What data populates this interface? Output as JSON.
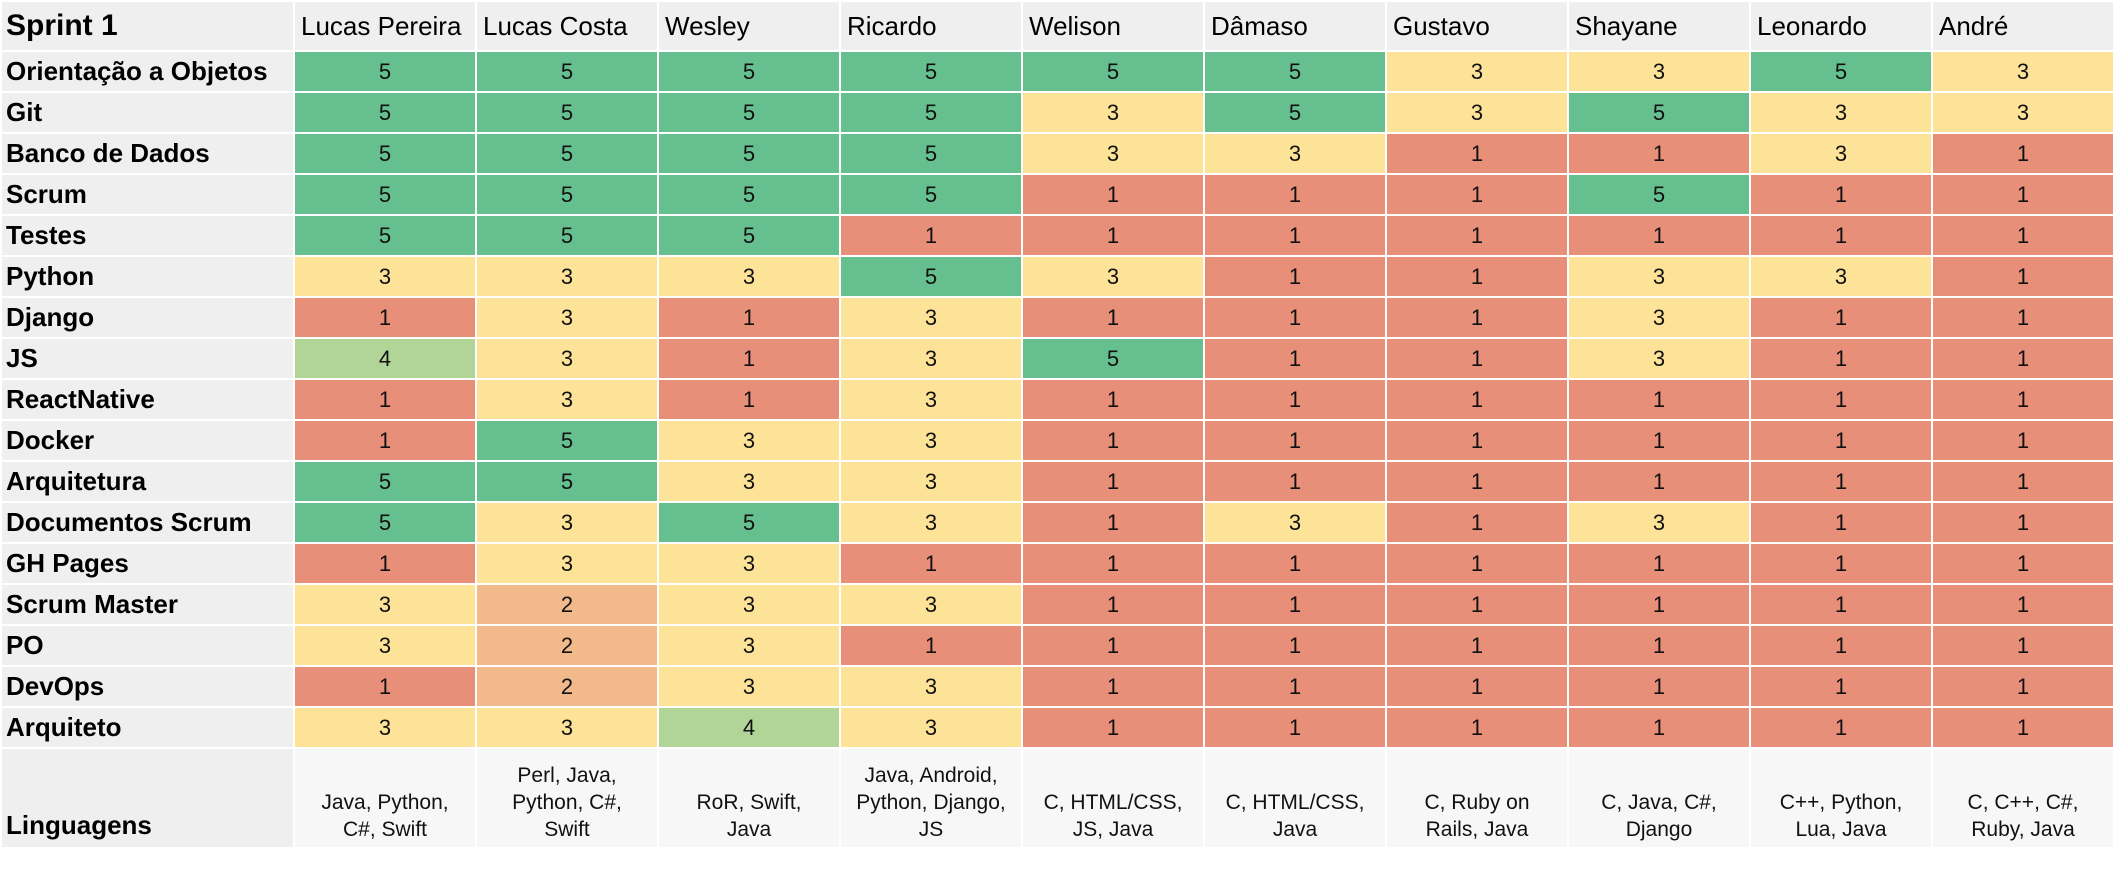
{
  "sheet": {
    "title": "Sprint 1",
    "members": [
      "Lucas Pereira",
      "Lucas Costa",
      "Wesley",
      "Ricardo",
      "Welison",
      "Dâmaso",
      "Gustavo",
      "Shayane",
      "Leonardo",
      "André"
    ],
    "skills": [
      {
        "name": "Orientação a Objetos",
        "scores": [
          5,
          5,
          5,
          5,
          5,
          5,
          3,
          3,
          5,
          3
        ]
      },
      {
        "name": "Git",
        "scores": [
          5,
          5,
          5,
          5,
          3,
          5,
          3,
          5,
          3,
          3
        ]
      },
      {
        "name": "Banco de Dados",
        "scores": [
          5,
          5,
          5,
          5,
          3,
          3,
          1,
          1,
          3,
          1
        ]
      },
      {
        "name": "Scrum",
        "scores": [
          5,
          5,
          5,
          5,
          1,
          1,
          1,
          5,
          1,
          1
        ]
      },
      {
        "name": "Testes",
        "scores": [
          5,
          5,
          5,
          1,
          1,
          1,
          1,
          1,
          1,
          1
        ]
      },
      {
        "name": "Python",
        "scores": [
          3,
          3,
          3,
          5,
          3,
          1,
          1,
          3,
          3,
          1
        ]
      },
      {
        "name": "Django",
        "scores": [
          1,
          3,
          1,
          3,
          1,
          1,
          1,
          3,
          1,
          1
        ]
      },
      {
        "name": "JS",
        "scores": [
          4,
          3,
          1,
          3,
          5,
          1,
          1,
          3,
          1,
          1
        ]
      },
      {
        "name": "ReactNative",
        "scores": [
          1,
          3,
          1,
          3,
          1,
          1,
          1,
          1,
          1,
          1
        ]
      },
      {
        "name": "Docker",
        "scores": [
          1,
          5,
          3,
          3,
          1,
          1,
          1,
          1,
          1,
          1
        ]
      },
      {
        "name": "Arquitetura",
        "scores": [
          5,
          5,
          3,
          3,
          1,
          1,
          1,
          1,
          1,
          1
        ]
      },
      {
        "name": "Documentos Scrum",
        "scores": [
          5,
          3,
          5,
          3,
          1,
          3,
          1,
          3,
          1,
          1
        ]
      },
      {
        "name": "GH Pages",
        "scores": [
          1,
          3,
          3,
          1,
          1,
          1,
          1,
          1,
          1,
          1
        ]
      },
      {
        "name": "Scrum Master",
        "scores": [
          3,
          2,
          3,
          3,
          1,
          1,
          1,
          1,
          1,
          1
        ]
      },
      {
        "name": "PO",
        "scores": [
          3,
          2,
          3,
          1,
          1,
          1,
          1,
          1,
          1,
          1
        ]
      },
      {
        "name": "DevOps",
        "scores": [
          1,
          2,
          3,
          3,
          1,
          1,
          1,
          1,
          1,
          1
        ]
      },
      {
        "name": "Arquiteto",
        "scores": [
          3,
          3,
          4,
          3,
          1,
          1,
          1,
          1,
          1,
          1
        ]
      }
    ],
    "languages_label": "Linguagens",
    "languages": [
      [
        "Java, Python,",
        "C#, Swift"
      ],
      [
        "Perl, Java,",
        "Python, C#,",
        "Swift"
      ],
      [
        "RoR, Swift,",
        "Java"
      ],
      [
        "Java, Android,",
        "Python, Django,",
        "JS"
      ],
      [
        "C, HTML/CSS,",
        "JS, Java"
      ],
      [
        "C, HTML/CSS,",
        "Java"
      ],
      [
        "C, Ruby on",
        "Rails, Java"
      ],
      [
        "C, Java, C#,",
        "Django"
      ],
      [
        "C++, Python,",
        "Lua, Java"
      ],
      [
        "C, C++, C#,",
        "Ruby, Java"
      ]
    ],
    "score_colors": {
      "1": "#e88f79",
      "2": "#f2b98b",
      "3": "#fde397",
      "4": "#b1d597",
      "5": "#66bf8f"
    }
  }
}
